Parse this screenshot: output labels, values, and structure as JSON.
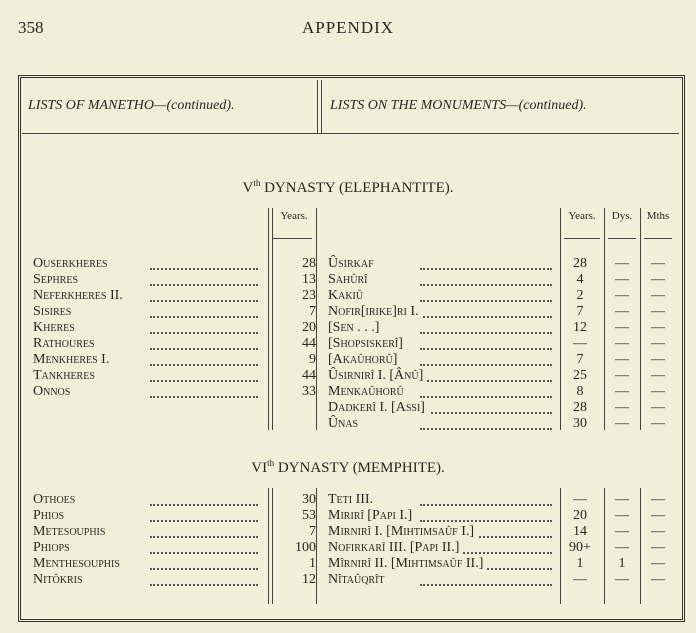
{
  "header": {
    "page_number": "358",
    "title": "APPENDIX"
  },
  "column_heads": {
    "manetho": "LISTS OF MANETHO—(continued).",
    "monuments": "LISTS ON THE MONUMENTS—(continued)."
  },
  "column_labels": {
    "manetho_years": "Years.",
    "monuments_years": "Years.",
    "days": "Dys.",
    "months": "Mths"
  },
  "sections": [
    {
      "title": {
        "numeral": "V",
        "sup": "th",
        "text": "DYNASTY (ELEPHANTITE)."
      },
      "manetho": [
        [
          "Ouserkheres",
          "28"
        ],
        [
          "Sephres",
          "13"
        ],
        [
          "Neferkheres II.",
          "23"
        ],
        [
          "Sisires",
          "7"
        ],
        [
          "Kheres",
          "20"
        ],
        [
          "Rathoures",
          "44"
        ],
        [
          "Menkheres I.",
          "9"
        ],
        [
          "Tankheres",
          "44"
        ],
        [
          "Onnos",
          "33"
        ]
      ],
      "monuments": [
        [
          "Ûsirkaf",
          "28",
          "—",
          "—"
        ],
        [
          "Sahûrî",
          "4",
          "—",
          "—"
        ],
        [
          "Kakiû",
          "2",
          "—",
          "—"
        ],
        [
          "Nofir[irike]ri I.",
          "7",
          "—",
          "—"
        ],
        [
          "[Sen . . .]",
          "12",
          "—",
          "—"
        ],
        [
          "[Shopsiskerî]",
          "—",
          "—",
          "—"
        ],
        [
          "[Akaûhorû]",
          "7",
          "—",
          "—"
        ],
        [
          "Ûsirnirî I. [Ânû]",
          "25",
          "—",
          "—"
        ],
        [
          "Menkaûhorû",
          "8",
          "—",
          "—"
        ],
        [
          "Dadkerî I. [Assi]",
          "28",
          "—",
          "—"
        ],
        [
          "Ûnas",
          "30",
          "—",
          "—"
        ]
      ]
    },
    {
      "title": {
        "numeral": "VI",
        "sup": "th",
        "text": "DYNASTY (MEMPHITE)."
      },
      "manetho": [
        [
          "Othoes",
          "30"
        ],
        [
          "Phios",
          "53"
        ],
        [
          "Metesouphis",
          "7"
        ],
        [
          "Phiops",
          "100"
        ],
        [
          "Menthesouphis",
          "1"
        ],
        [
          "Nitôkris",
          "12"
        ]
      ],
      "monuments": [
        [
          "Teti III.",
          "—",
          "—",
          "—"
        ],
        [
          "Mirirî [Papi I.]",
          "20",
          "—",
          "—"
        ],
        [
          "Mirnirî I. [Mihtimsaûf I.]",
          "14",
          "—",
          "—"
        ],
        [
          "Nofirkarî III. [Papi II.]",
          "90+",
          "—",
          "—"
        ],
        [
          "Mîrnirî II. [Mihtimsaûf II.]",
          "1",
          "1",
          "—"
        ],
        [
          "Nîtaûqrît",
          "—",
          "—",
          "—"
        ]
      ]
    }
  ]
}
